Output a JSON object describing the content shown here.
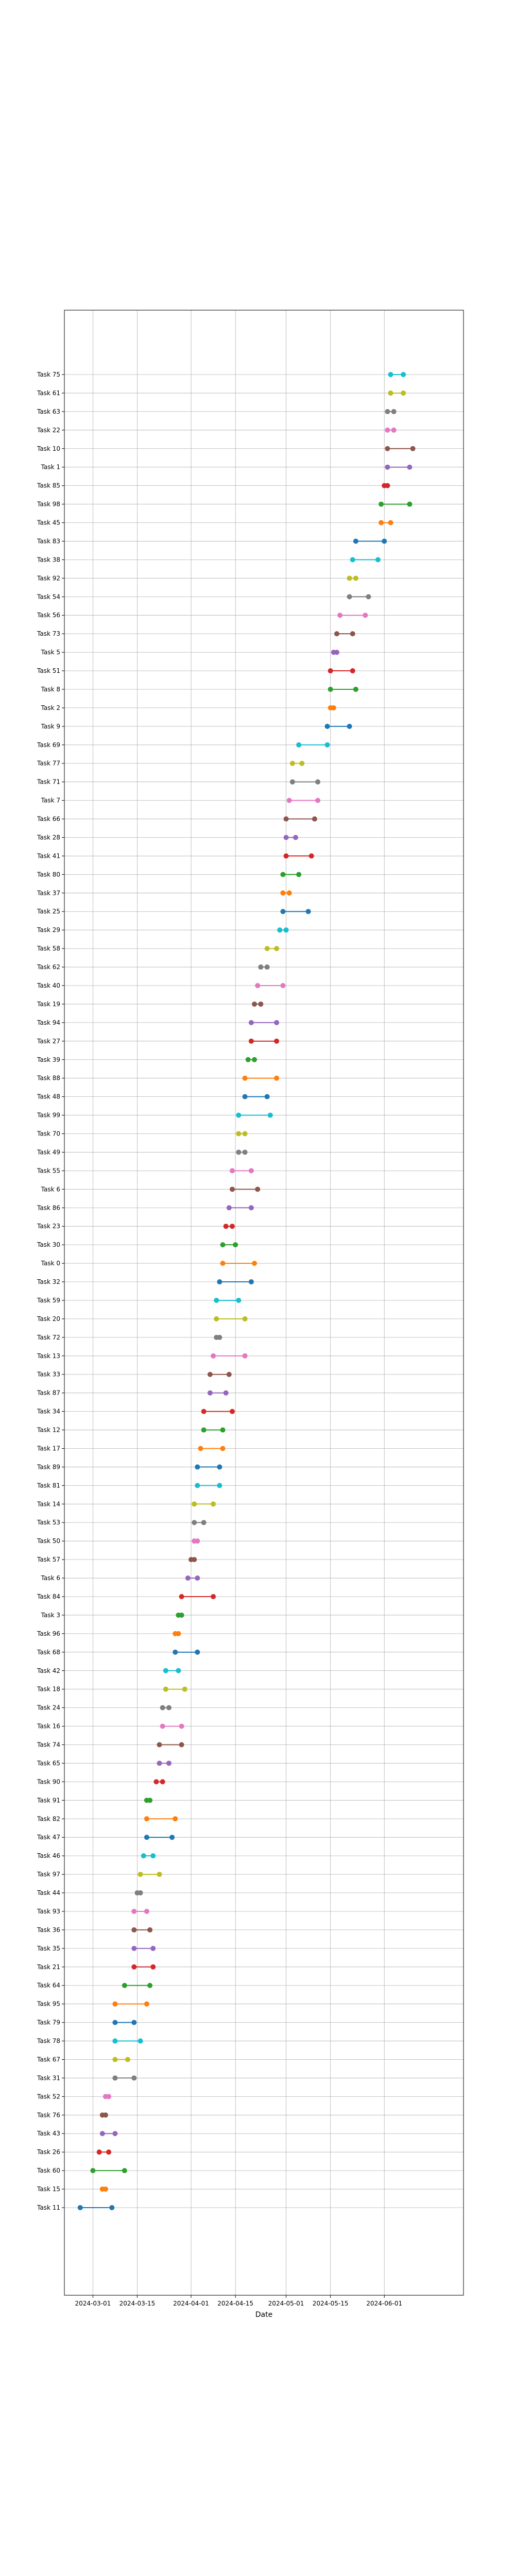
{
  "chart_data": {
    "type": "dumbbell",
    "title": "",
    "xlabel": "Date",
    "ylabel": "",
    "xlim": [
      "2024-02-21",
      "2024-06-26"
    ],
    "x_ticks": [
      "2024-03-01",
      "2024-03-15",
      "2024-04-01",
      "2024-04-15",
      "2024-05-01",
      "2024-05-15",
      "2024-06-01"
    ],
    "grid": true,
    "legend": "none",
    "palette": [
      "#1f77b4",
      "#ff7f0e",
      "#2ca02c",
      "#d62728",
      "#9467bd",
      "#8c564b",
      "#e377c2",
      "#7f7f7f",
      "#bcbd22",
      "#17becf"
    ],
    "tasks": [
      {
        "label": "Task 11",
        "start": "2024-02-26",
        "end": "2024-03-07"
      },
      {
        "label": "Task 15",
        "start": "2024-03-04",
        "end": "2024-03-05"
      },
      {
        "label": "Task 60",
        "start": "2024-03-01",
        "end": "2024-03-11"
      },
      {
        "label": "Task 26",
        "start": "2024-03-03",
        "end": "2024-03-06"
      },
      {
        "label": "Task 43",
        "start": "2024-03-04",
        "end": "2024-03-08"
      },
      {
        "label": "Task 76",
        "start": "2024-03-04",
        "end": "2024-03-05"
      },
      {
        "label": "Task 52",
        "start": "2024-03-05",
        "end": "2024-03-06"
      },
      {
        "label": "Task 31",
        "start": "2024-03-08",
        "end": "2024-03-14"
      },
      {
        "label": "Task 67",
        "start": "2024-03-08",
        "end": "2024-03-12"
      },
      {
        "label": "Task 78",
        "start": "2024-03-08",
        "end": "2024-03-16"
      },
      {
        "label": "Task 79",
        "start": "2024-03-08",
        "end": "2024-03-14"
      },
      {
        "label": "Task 95",
        "start": "2024-03-08",
        "end": "2024-03-18"
      },
      {
        "label": "Task 64",
        "start": "2024-03-11",
        "end": "2024-03-19"
      },
      {
        "label": "Task 21",
        "start": "2024-03-14",
        "end": "2024-03-20"
      },
      {
        "label": "Task 35",
        "start": "2024-03-14",
        "end": "2024-03-20"
      },
      {
        "label": "Task 36",
        "start": "2024-03-14",
        "end": "2024-03-19"
      },
      {
        "label": "Task 93",
        "start": "2024-03-14",
        "end": "2024-03-18"
      },
      {
        "label": "Task 44",
        "start": "2024-03-15",
        "end": "2024-03-16"
      },
      {
        "label": "Task 97",
        "start": "2024-03-16",
        "end": "2024-03-22"
      },
      {
        "label": "Task 46",
        "start": "2024-03-17",
        "end": "2024-03-20"
      },
      {
        "label": "Task 47",
        "start": "2024-03-18",
        "end": "2024-03-26"
      },
      {
        "label": "Task 82",
        "start": "2024-03-18",
        "end": "2024-03-27"
      },
      {
        "label": "Task 91",
        "start": "2024-03-18",
        "end": "2024-03-19"
      },
      {
        "label": "Task 90",
        "start": "2024-03-21",
        "end": "2024-03-23"
      },
      {
        "label": "Task 65",
        "start": "2024-03-22",
        "end": "2024-03-25"
      },
      {
        "label": "Task 74",
        "start": "2024-03-22",
        "end": "2024-03-29"
      },
      {
        "label": "Task 16",
        "start": "2024-03-23",
        "end": "2024-03-29"
      },
      {
        "label": "Task 24",
        "start": "2024-03-23",
        "end": "2024-03-25"
      },
      {
        "label": "Task 18",
        "start": "2024-03-24",
        "end": "2024-03-30"
      },
      {
        "label": "Task 42",
        "start": "2024-03-24",
        "end": "2024-03-28"
      },
      {
        "label": "Task 68",
        "start": "2024-03-27",
        "end": "2024-04-03"
      },
      {
        "label": "Task 96",
        "start": "2024-03-27",
        "end": "2024-03-28"
      },
      {
        "label": "Task 3",
        "start": "2024-03-28",
        "end": "2024-03-29"
      },
      {
        "label": "Task 84",
        "start": "2024-03-29",
        "end": "2024-04-08"
      },
      {
        "label": "Task 6",
        "start": "2024-03-31",
        "end": "2024-04-03"
      },
      {
        "label": "Task 57",
        "start": "2024-04-01",
        "end": "2024-04-02"
      },
      {
        "label": "Task 50",
        "start": "2024-04-02",
        "end": "2024-04-03"
      },
      {
        "label": "Task 53",
        "start": "2024-04-02",
        "end": "2024-04-05"
      },
      {
        "label": "Task 14",
        "start": "2024-04-02",
        "end": "2024-04-08"
      },
      {
        "label": "Task 81",
        "start": "2024-04-03",
        "end": "2024-04-10"
      },
      {
        "label": "Task 89",
        "start": "2024-04-03",
        "end": "2024-04-10"
      },
      {
        "label": "Task 17",
        "start": "2024-04-04",
        "end": "2024-04-11"
      },
      {
        "label": "Task 12",
        "start": "2024-04-05",
        "end": "2024-04-11"
      },
      {
        "label": "Task 34",
        "start": "2024-04-05",
        "end": "2024-04-14"
      },
      {
        "label": "Task 87",
        "start": "2024-04-07",
        "end": "2024-04-12"
      },
      {
        "label": "Task 33",
        "start": "2024-04-07",
        "end": "2024-04-13"
      },
      {
        "label": "Task 13",
        "start": "2024-04-08",
        "end": "2024-04-18"
      },
      {
        "label": "Task 72",
        "start": "2024-04-09",
        "end": "2024-04-10"
      },
      {
        "label": "Task 20",
        "start": "2024-04-09",
        "end": "2024-04-18"
      },
      {
        "label": "Task 59",
        "start": "2024-04-09",
        "end": "2024-04-16"
      },
      {
        "label": "Task 32",
        "start": "2024-04-10",
        "end": "2024-04-20"
      },
      {
        "label": "Task 0",
        "start": "2024-04-11",
        "end": "2024-04-21"
      },
      {
        "label": "Task 30",
        "start": "2024-04-11",
        "end": "2024-04-15"
      },
      {
        "label": "Task 23",
        "start": "2024-04-12",
        "end": "2024-04-14"
      },
      {
        "label": "Task 86",
        "start": "2024-04-13",
        "end": "2024-04-20"
      },
      {
        "label": "Task 6",
        "start": "2024-04-14",
        "end": "2024-04-22"
      },
      {
        "label": "Task 55",
        "start": "2024-04-14",
        "end": "2024-04-20"
      },
      {
        "label": "Task 49",
        "start": "2024-04-16",
        "end": "2024-04-18"
      },
      {
        "label": "Task 70",
        "start": "2024-04-16",
        "end": "2024-04-18"
      },
      {
        "label": "Task 99",
        "start": "2024-04-16",
        "end": "2024-04-26"
      },
      {
        "label": "Task 48",
        "start": "2024-04-18",
        "end": "2024-04-25"
      },
      {
        "label": "Task 88",
        "start": "2024-04-18",
        "end": "2024-04-28"
      },
      {
        "label": "Task 39",
        "start": "2024-04-19",
        "end": "2024-04-21"
      },
      {
        "label": "Task 27",
        "start": "2024-04-20",
        "end": "2024-04-28"
      },
      {
        "label": "Task 94",
        "start": "2024-04-20",
        "end": "2024-04-28"
      },
      {
        "label": "Task 19",
        "start": "2024-04-21",
        "end": "2024-04-23"
      },
      {
        "label": "Task 40",
        "start": "2024-04-22",
        "end": "2024-04-30"
      },
      {
        "label": "Task 62",
        "start": "2024-04-23",
        "end": "2024-04-25"
      },
      {
        "label": "Task 58",
        "start": "2024-04-25",
        "end": "2024-04-28"
      },
      {
        "label": "Task 29",
        "start": "2024-04-29",
        "end": "2024-05-01"
      },
      {
        "label": "Task 25",
        "start": "2024-04-30",
        "end": "2024-05-08"
      },
      {
        "label": "Task 37",
        "start": "2024-04-30",
        "end": "2024-05-02"
      },
      {
        "label": "Task 80",
        "start": "2024-04-30",
        "end": "2024-05-05"
      },
      {
        "label": "Task 41",
        "start": "2024-05-01",
        "end": "2024-05-09"
      },
      {
        "label": "Task 28",
        "start": "2024-05-01",
        "end": "2024-05-04"
      },
      {
        "label": "Task 66",
        "start": "2024-05-01",
        "end": "2024-05-10"
      },
      {
        "label": "Task 7",
        "start": "2024-05-02",
        "end": "2024-05-11"
      },
      {
        "label": "Task 71",
        "start": "2024-05-03",
        "end": "2024-05-11"
      },
      {
        "label": "Task 77",
        "start": "2024-05-03",
        "end": "2024-05-06"
      },
      {
        "label": "Task 69",
        "start": "2024-05-05",
        "end": "2024-05-14"
      },
      {
        "label": "Task 9",
        "start": "2024-05-14",
        "end": "2024-05-21"
      },
      {
        "label": "Task 2",
        "start": "2024-05-15",
        "end": "2024-05-16"
      },
      {
        "label": "Task 8",
        "start": "2024-05-15",
        "end": "2024-05-23"
      },
      {
        "label": "Task 51",
        "start": "2024-05-15",
        "end": "2024-05-22"
      },
      {
        "label": "Task 5",
        "start": "2024-05-16",
        "end": "2024-05-17"
      },
      {
        "label": "Task 73",
        "start": "2024-05-17",
        "end": "2024-05-22"
      },
      {
        "label": "Task 56",
        "start": "2024-05-18",
        "end": "2024-05-26"
      },
      {
        "label": "Task 54",
        "start": "2024-05-21",
        "end": "2024-05-27"
      },
      {
        "label": "Task 92",
        "start": "2024-05-21",
        "end": "2024-05-23"
      },
      {
        "label": "Task 38",
        "start": "2024-05-22",
        "end": "2024-05-30"
      },
      {
        "label": "Task 83",
        "start": "2024-05-23",
        "end": "2024-06-01"
      },
      {
        "label": "Task 45",
        "start": "2024-05-31",
        "end": "2024-06-03"
      },
      {
        "label": "Task 98",
        "start": "2024-05-31",
        "end": "2024-06-09"
      },
      {
        "label": "Task 85",
        "start": "2024-06-01",
        "end": "2024-06-02"
      },
      {
        "label": "Task 1",
        "start": "2024-06-02",
        "end": "2024-06-09"
      },
      {
        "label": "Task 10",
        "start": "2024-06-02",
        "end": "2024-06-10"
      },
      {
        "label": "Task 22",
        "start": "2024-06-02",
        "end": "2024-06-04"
      },
      {
        "label": "Task 63",
        "start": "2024-06-02",
        "end": "2024-06-04"
      },
      {
        "label": "Task 61",
        "start": "2024-06-03",
        "end": "2024-06-07"
      },
      {
        "label": "Task 75",
        "start": "2024-06-03",
        "end": "2024-06-07"
      }
    ]
  }
}
